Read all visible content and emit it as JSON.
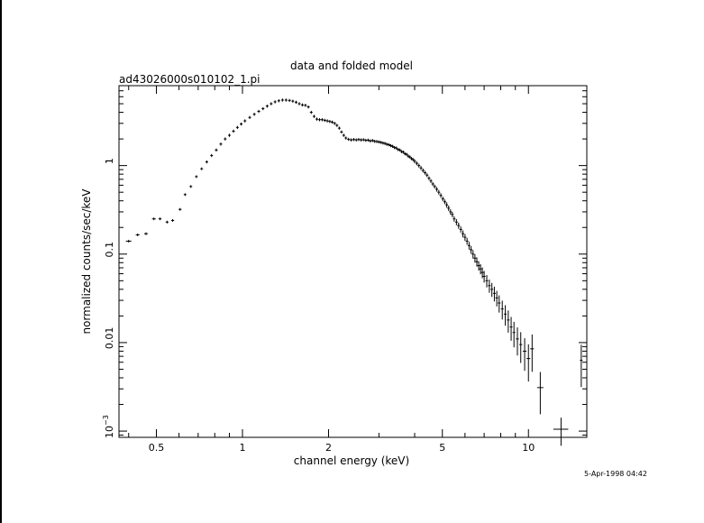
{
  "chart_data": {
    "type": "scatter",
    "title": "data and folded model",
    "subtitle": "ad43026000s010102_1.pi",
    "xlabel": "channel energy (keV)",
    "ylabel": "normalized counts/sec/keV",
    "timestamp": "5-Apr-1998 04:42",
    "xscale": "log",
    "yscale": "log",
    "xlim": [
      0.37,
      16
    ],
    "ylim": [
      0.00085,
      8
    ],
    "x_ticks": [
      {
        "value": 0.5,
        "label": "0.5"
      },
      {
        "value": 1,
        "label": "1"
      },
      {
        "value": 2,
        "label": "2"
      },
      {
        "value": 5,
        "label": "5"
      },
      {
        "value": 10,
        "label": "10"
      }
    ],
    "y_ticks": [
      {
        "value": 0.001,
        "label": "10",
        "exp": "−3"
      },
      {
        "value": 0.01,
        "label": "0.01",
        "exp": ""
      },
      {
        "value": 0.1,
        "label": "0.1",
        "exp": ""
      },
      {
        "value": 1,
        "label": "1",
        "exp": ""
      }
    ],
    "grid": false,
    "points": [
      {
        "x": 0.4,
        "y": 0.14,
        "xe": 0.022,
        "ye": 0.02
      },
      {
        "x": 0.43,
        "y": 0.165,
        "xe": 0.015,
        "ye": 0.02
      },
      {
        "x": 0.46,
        "y": 0.17,
        "xe": 0.015,
        "ye": 0.02
      },
      {
        "x": 0.49,
        "y": 0.25,
        "xe": 0.015,
        "ye": 0.03
      },
      {
        "x": 0.515,
        "y": 0.25,
        "xe": 0.012,
        "ye": 0.025
      },
      {
        "x": 0.545,
        "y": 0.23,
        "xe": 0.012,
        "ye": 0.02
      },
      {
        "x": 0.57,
        "y": 0.24,
        "xe": 0.012,
        "ye": 0.02
      },
      {
        "x": 0.605,
        "y": 0.32,
        "xe": 0.012,
        "ye": 0.03
      },
      {
        "x": 0.63,
        "y": 0.47,
        "xe": 0.01,
        "ye": 0.03
      },
      {
        "x": 0.66,
        "y": 0.58,
        "xe": 0.01,
        "ye": 0.03
      },
      {
        "x": 0.69,
        "y": 0.75,
        "xe": 0.01,
        "ye": 0.03
      },
      {
        "x": 0.72,
        "y": 0.92,
        "xe": 0.008,
        "ye": 0.03
      },
      {
        "x": 0.75,
        "y": 1.1,
        "xe": 0.008,
        "ye": 0.04
      },
      {
        "x": 0.78,
        "y": 1.3,
        "xe": 0.008,
        "ye": 0.04
      },
      {
        "x": 0.81,
        "y": 1.5,
        "xe": 0.008,
        "ye": 0.04
      },
      {
        "x": 0.84,
        "y": 1.75,
        "xe": 0.008,
        "ye": 0.04
      },
      {
        "x": 0.87,
        "y": 2.0,
        "xe": 0.008,
        "ye": 0.04
      },
      {
        "x": 0.9,
        "y": 2.2,
        "xe": 0.008,
        "ye": 0.04
      },
      {
        "x": 0.93,
        "y": 2.45,
        "xe": 0.008,
        "ye": 0.04
      },
      {
        "x": 0.96,
        "y": 2.7,
        "xe": 0.008,
        "ye": 0.04
      },
      {
        "x": 0.99,
        "y": 2.95,
        "xe": 0.008,
        "ye": 0.04
      },
      {
        "x": 1.02,
        "y": 3.2,
        "xe": 0.008,
        "ye": 0.04
      },
      {
        "x": 1.06,
        "y": 3.5,
        "xe": 0.008,
        "ye": 0.04
      },
      {
        "x": 1.1,
        "y": 3.8,
        "xe": 0.008,
        "ye": 0.04
      },
      {
        "x": 1.14,
        "y": 4.1,
        "xe": 0.008,
        "ye": 0.04
      },
      {
        "x": 1.18,
        "y": 4.4,
        "xe": 0.008,
        "ye": 0.04
      },
      {
        "x": 1.22,
        "y": 4.7,
        "xe": 0.008,
        "ye": 0.04
      },
      {
        "x": 1.26,
        "y": 5.0,
        "xe": 0.008,
        "ye": 0.04
      },
      {
        "x": 1.3,
        "y": 5.25,
        "xe": 0.008,
        "ye": 0.04
      },
      {
        "x": 1.34,
        "y": 5.4,
        "xe": 0.008,
        "ye": 0.04
      },
      {
        "x": 1.38,
        "y": 5.5,
        "xe": 0.008,
        "ye": 0.04
      },
      {
        "x": 1.42,
        "y": 5.5,
        "xe": 0.008,
        "ye": 0.04
      },
      {
        "x": 1.46,
        "y": 5.45,
        "xe": 0.008,
        "ye": 0.04
      },
      {
        "x": 1.5,
        "y": 5.35,
        "xe": 0.008,
        "ye": 0.04
      },
      {
        "x": 1.54,
        "y": 5.2,
        "xe": 0.008,
        "ye": 0.04
      },
      {
        "x": 1.58,
        "y": 5.0,
        "xe": 0.008,
        "ye": 0.04
      },
      {
        "x": 1.62,
        "y": 4.85,
        "xe": 0.008,
        "ye": 0.04
      },
      {
        "x": 1.66,
        "y": 4.8,
        "xe": 0.008,
        "ye": 0.04
      },
      {
        "x": 1.7,
        "y": 4.6,
        "xe": 0.008,
        "ye": 0.04
      },
      {
        "x": 1.74,
        "y": 4.0,
        "xe": 0.008,
        "ye": 0.04
      },
      {
        "x": 1.78,
        "y": 3.6,
        "xe": 0.008,
        "ye": 0.04
      },
      {
        "x": 1.82,
        "y": 3.35,
        "xe": 0.008,
        "ye": 0.04
      },
      {
        "x": 1.86,
        "y": 3.3,
        "xe": 0.008,
        "ye": 0.04
      },
      {
        "x": 1.9,
        "y": 3.3,
        "xe": 0.008,
        "ye": 0.04
      },
      {
        "x": 1.94,
        "y": 3.25,
        "xe": 0.008,
        "ye": 0.04
      },
      {
        "x": 1.98,
        "y": 3.2,
        "xe": 0.008,
        "ye": 0.04
      },
      {
        "x": 2.02,
        "y": 3.15,
        "xe": 0.008,
        "ye": 0.04
      },
      {
        "x": 2.06,
        "y": 3.1,
        "xe": 0.008,
        "ye": 0.04
      },
      {
        "x": 2.1,
        "y": 3.0,
        "xe": 0.008,
        "ye": 0.04
      },
      {
        "x": 2.14,
        "y": 2.85,
        "xe": 0.008,
        "ye": 0.04
      },
      {
        "x": 2.18,
        "y": 2.65,
        "xe": 0.008,
        "ye": 0.04
      },
      {
        "x": 2.22,
        "y": 2.4,
        "xe": 0.008,
        "ye": 0.04
      },
      {
        "x": 2.26,
        "y": 2.2,
        "xe": 0.008,
        "ye": 0.04
      },
      {
        "x": 2.3,
        "y": 2.05,
        "xe": 0.008,
        "ye": 0.04
      },
      {
        "x": 2.35,
        "y": 1.98,
        "xe": 0.008,
        "ye": 0.04
      },
      {
        "x": 2.4,
        "y": 1.95,
        "xe": 0.008,
        "ye": 0.04
      },
      {
        "x": 2.45,
        "y": 1.97,
        "xe": 0.008,
        "ye": 0.04
      },
      {
        "x": 2.5,
        "y": 1.95,
        "xe": 0.008,
        "ye": 0.04
      },
      {
        "x": 2.55,
        "y": 1.97,
        "xe": 0.008,
        "ye": 0.04
      },
      {
        "x": 2.6,
        "y": 1.95,
        "xe": 0.008,
        "ye": 0.04
      },
      {
        "x": 2.65,
        "y": 1.96,
        "xe": 0.008,
        "ye": 0.04
      },
      {
        "x": 2.7,
        "y": 1.93,
        "xe": 0.008,
        "ye": 0.04
      },
      {
        "x": 2.75,
        "y": 1.94,
        "xe": 0.008,
        "ye": 0.04
      },
      {
        "x": 2.8,
        "y": 1.9,
        "xe": 0.008,
        "ye": 0.04
      },
      {
        "x": 2.85,
        "y": 1.92,
        "xe": 0.008,
        "ye": 0.04
      },
      {
        "x": 2.9,
        "y": 1.88,
        "xe": 0.008,
        "ye": 0.04
      },
      {
        "x": 2.95,
        "y": 1.87,
        "xe": 0.008,
        "ye": 0.04
      },
      {
        "x": 3.0,
        "y": 1.85,
        "xe": 0.008,
        "ye": 0.04
      },
      {
        "x": 3.05,
        "y": 1.83,
        "xe": 0.008,
        "ye": 0.04
      },
      {
        "x": 3.1,
        "y": 1.8,
        "xe": 0.008,
        "ye": 0.04
      },
      {
        "x": 3.15,
        "y": 1.78,
        "xe": 0.008,
        "ye": 0.04
      },
      {
        "x": 3.2,
        "y": 1.74,
        "xe": 0.008,
        "ye": 0.04
      },
      {
        "x": 3.25,
        "y": 1.72,
        "xe": 0.008,
        "ye": 0.04
      },
      {
        "x": 3.3,
        "y": 1.68,
        "xe": 0.008,
        "ye": 0.04
      },
      {
        "x": 3.35,
        "y": 1.65,
        "xe": 0.008,
        "ye": 0.04
      },
      {
        "x": 3.4,
        "y": 1.6,
        "xe": 0.008,
        "ye": 0.04
      },
      {
        "x": 3.45,
        "y": 1.58,
        "xe": 0.008,
        "ye": 0.04
      },
      {
        "x": 3.5,
        "y": 1.52,
        "xe": 0.008,
        "ye": 0.04
      },
      {
        "x": 3.55,
        "y": 1.5,
        "xe": 0.008,
        "ye": 0.04
      },
      {
        "x": 3.6,
        "y": 1.44,
        "xe": 0.008,
        "ye": 0.04
      },
      {
        "x": 3.65,
        "y": 1.42,
        "xe": 0.008,
        "ye": 0.04
      },
      {
        "x": 3.7,
        "y": 1.36,
        "xe": 0.008,
        "ye": 0.04
      },
      {
        "x": 3.75,
        "y": 1.34,
        "xe": 0.008,
        "ye": 0.04
      },
      {
        "x": 3.8,
        "y": 1.28,
        "xe": 0.008,
        "ye": 0.04
      },
      {
        "x": 3.85,
        "y": 1.25,
        "xe": 0.008,
        "ye": 0.04
      },
      {
        "x": 3.9,
        "y": 1.2,
        "xe": 0.008,
        "ye": 0.04
      },
      {
        "x": 3.95,
        "y": 1.17,
        "xe": 0.008,
        "ye": 0.04
      },
      {
        "x": 4.0,
        "y": 1.12,
        "xe": 0.008,
        "ye": 0.05
      },
      {
        "x": 4.07,
        "y": 1.06,
        "xe": 0.008,
        "ye": 0.05
      },
      {
        "x": 4.14,
        "y": 1.0,
        "xe": 0.008,
        "ye": 0.05
      },
      {
        "x": 4.21,
        "y": 0.94,
        "xe": 0.008,
        "ye": 0.05
      },
      {
        "x": 4.28,
        "y": 0.88,
        "xe": 0.008,
        "ye": 0.05
      },
      {
        "x": 4.35,
        "y": 0.83,
        "xe": 0.008,
        "ye": 0.05
      },
      {
        "x": 4.42,
        "y": 0.78,
        "xe": 0.008,
        "ye": 0.05
      },
      {
        "x": 4.49,
        "y": 0.72,
        "xe": 0.008,
        "ye": 0.05
      },
      {
        "x": 4.56,
        "y": 0.67,
        "xe": 0.008,
        "ye": 0.05
      },
      {
        "x": 4.63,
        "y": 0.62,
        "xe": 0.008,
        "ye": 0.05
      },
      {
        "x": 4.7,
        "y": 0.58,
        "xe": 0.008,
        "ye": 0.05
      },
      {
        "x": 4.78,
        "y": 0.54,
        "xe": 0.008,
        "ye": 0.06
      },
      {
        "x": 4.86,
        "y": 0.5,
        "xe": 0.008,
        "ye": 0.06
      },
      {
        "x": 4.94,
        "y": 0.46,
        "xe": 0.008,
        "ye": 0.06
      },
      {
        "x": 5.02,
        "y": 0.42,
        "xe": 0.008,
        "ye": 0.06
      },
      {
        "x": 5.1,
        "y": 0.39,
        "xe": 0.008,
        "ye": 0.06
      },
      {
        "x": 5.18,
        "y": 0.36,
        "xe": 0.008,
        "ye": 0.07
      },
      {
        "x": 5.26,
        "y": 0.33,
        "xe": 0.008,
        "ye": 0.07
      },
      {
        "x": 5.34,
        "y": 0.3,
        "xe": 0.008,
        "ye": 0.07
      },
      {
        "x": 5.42,
        "y": 0.28,
        "xe": 0.008,
        "ye": 0.07
      },
      {
        "x": 5.5,
        "y": 0.25,
        "xe": 0.008,
        "ye": 0.07
      },
      {
        "x": 5.6,
        "y": 0.23,
        "xe": 0.008,
        "ye": 0.08
      },
      {
        "x": 5.7,
        "y": 0.21,
        "xe": 0.008,
        "ye": 0.08
      },
      {
        "x": 5.8,
        "y": 0.19,
        "xe": 0.008,
        "ye": 0.08
      },
      {
        "x": 5.9,
        "y": 0.17,
        "xe": 0.008,
        "ye": 0.09
      },
      {
        "x": 6.0,
        "y": 0.155,
        "xe": 0.008,
        "ye": 0.09
      },
      {
        "x": 6.1,
        "y": 0.14,
        "xe": 0.008,
        "ye": 0.09
      },
      {
        "x": 6.2,
        "y": 0.125,
        "xe": 0.008,
        "ye": 0.1
      },
      {
        "x": 6.3,
        "y": 0.112,
        "xe": 0.008,
        "ye": 0.1
      },
      {
        "x": 6.4,
        "y": 0.1,
        "xe": 0.008,
        "ye": 0.11
      },
      {
        "x": 6.5,
        "y": 0.09,
        "xe": 0.008,
        "ye": 0.11
      },
      {
        "x": 6.6,
        "y": 0.082,
        "xe": 0.008,
        "ye": 0.12
      },
      {
        "x": 6.7,
        "y": 0.074,
        "xe": 0.008,
        "ye": 0.12
      },
      {
        "x": 6.8,
        "y": 0.068,
        "xe": 0.008,
        "ye": 0.13
      },
      {
        "x": 6.9,
        "y": 0.062,
        "xe": 0.008,
        "ye": 0.14
      },
      {
        "x": 7.0,
        "y": 0.056,
        "xe": 0.008,
        "ye": 0.15
      },
      {
        "x": 7.15,
        "y": 0.05,
        "xe": 0.009,
        "ye": 0.16
      },
      {
        "x": 7.3,
        "y": 0.044,
        "xe": 0.009,
        "ye": 0.17
      },
      {
        "x": 7.45,
        "y": 0.04,
        "xe": 0.009,
        "ye": 0.18
      },
      {
        "x": 7.6,
        "y": 0.036,
        "xe": 0.009,
        "ye": 0.19
      },
      {
        "x": 7.75,
        "y": 0.032,
        "xe": 0.009,
        "ye": 0.2
      },
      {
        "x": 7.9,
        "y": 0.028,
        "xe": 0.009,
        "ye": 0.22
      },
      {
        "x": 8.1,
        "y": 0.024,
        "xe": 0.009,
        "ye": 0.24
      },
      {
        "x": 8.3,
        "y": 0.021,
        "xe": 0.009,
        "ye": 0.26
      },
      {
        "x": 8.5,
        "y": 0.018,
        "xe": 0.01,
        "ye": 0.28
      },
      {
        "x": 8.7,
        "y": 0.015,
        "xe": 0.01,
        "ye": 0.3
      },
      {
        "x": 8.9,
        "y": 0.013,
        "xe": 0.01,
        "ye": 0.32
      },
      {
        "x": 9.15,
        "y": 0.011,
        "xe": 0.012,
        "ye": 0.35
      },
      {
        "x": 9.4,
        "y": 0.0095,
        "xe": 0.012,
        "ye": 0.38
      },
      {
        "x": 9.7,
        "y": 0.008,
        "xe": 0.015,
        "ye": 0.4
      },
      {
        "x": 10.0,
        "y": 0.0066,
        "xe": 0.015,
        "ye": 0.45
      },
      {
        "x": 10.3,
        "y": 0.0085,
        "xe": 0.015,
        "ye": 0.45
      },
      {
        "x": 11.0,
        "y": 0.0031,
        "xe": 0.025,
        "ye": 0.5
      },
      {
        "x": 13.0,
        "y": 0.00105,
        "xe": 0.06,
        "ye": 0.35
      },
      {
        "x": 15.3,
        "y": 0.0063,
        "xe": 0.01,
        "ye": 0.5
      }
    ]
  }
}
